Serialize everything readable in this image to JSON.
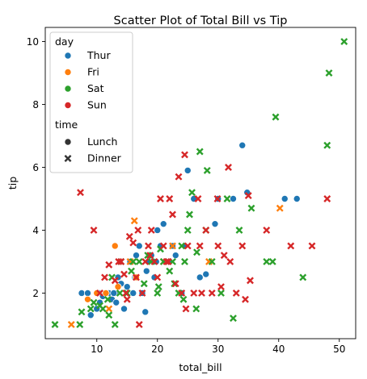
{
  "chart_data": {
    "type": "scatter",
    "title": "Scatter Plot of Total Bill vs Tip",
    "xlabel": "total_bill",
    "ylabel": "tip",
    "xlim": [
      1.5,
      52.7
    ],
    "ylim": [
      0.55,
      10.45
    ],
    "xticks": [
      10,
      20,
      30,
      40,
      50
    ],
    "yticks": [
      2,
      4,
      6,
      8,
      10
    ],
    "grid": false,
    "legend": {
      "placement": "top-left",
      "hue_title": "day",
      "hue_entries": [
        {
          "name": "Thur",
          "color": "#1f77b4"
        },
        {
          "name": "Fri",
          "color": "#ff7f0e"
        },
        {
          "name": "Sat",
          "color": "#2ca02c"
        },
        {
          "name": "Sun",
          "color": "#d62728"
        }
      ],
      "style_title": "time",
      "style_entries": [
        {
          "name": "Lunch",
          "marker": "circle"
        },
        {
          "name": "Dinner",
          "marker": "x"
        }
      ]
    },
    "points": [
      [
        10.3,
        2.0,
        "Thur",
        "Lunch"
      ],
      [
        10.0,
        1.5,
        "Thur",
        "Lunch"
      ],
      [
        10.5,
        1.7,
        "Thur",
        "Lunch"
      ],
      [
        11.0,
        1.9,
        "Thur",
        "Lunch"
      ],
      [
        12.0,
        2.0,
        "Thur",
        "Lunch"
      ],
      [
        12.5,
        1.8,
        "Thur",
        "Lunch"
      ],
      [
        13.0,
        2.0,
        "Thur",
        "Lunch"
      ],
      [
        13.5,
        2.5,
        "Thur",
        "Lunch"
      ],
      [
        14.0,
        2.3,
        "Thur",
        "Lunch"
      ],
      [
        15.0,
        2.2,
        "Thur",
        "Lunch"
      ],
      [
        15.5,
        3.0,
        "Thur",
        "Lunch"
      ],
      [
        16.0,
        2.0,
        "Thur",
        "Lunch"
      ],
      [
        16.5,
        3.2,
        "Thur",
        "Lunch"
      ],
      [
        17.0,
        3.5,
        "Thur",
        "Lunch"
      ],
      [
        17.5,
        2.0,
        "Thur",
        "Lunch"
      ],
      [
        18.0,
        1.4,
        "Thur",
        "Lunch"
      ],
      [
        18.5,
        3.0,
        "Thur",
        "Lunch"
      ],
      [
        19.0,
        3.2,
        "Thur",
        "Lunch"
      ],
      [
        19.5,
        2.5,
        "Thur",
        "Lunch"
      ],
      [
        20.0,
        4.0,
        "Thur",
        "Lunch"
      ],
      [
        20.5,
        3.5,
        "Thur",
        "Lunch"
      ],
      [
        21.0,
        4.2,
        "Thur",
        "Lunch"
      ],
      [
        22.0,
        3.0,
        "Thur",
        "Lunch"
      ],
      [
        22.5,
        3.5,
        "Thur",
        "Lunch"
      ],
      [
        23.0,
        3.2,
        "Thur",
        "Lunch"
      ],
      [
        24.0,
        2.0,
        "Thur",
        "Lunch"
      ],
      [
        24.5,
        3.5,
        "Thur",
        "Lunch"
      ],
      [
        25.0,
        5.9,
        "Thur",
        "Lunch"
      ],
      [
        26.0,
        5.0,
        "Thur",
        "Lunch"
      ],
      [
        27.0,
        2.5,
        "Thur",
        "Lunch"
      ],
      [
        28.0,
        2.6,
        "Thur",
        "Lunch"
      ],
      [
        29.5,
        4.2,
        "Thur",
        "Lunch"
      ],
      [
        30.0,
        5.0,
        "Thur",
        "Lunch"
      ],
      [
        32.5,
        5.0,
        "Thur",
        "Lunch"
      ],
      [
        34.0,
        6.7,
        "Thur",
        "Lunch"
      ],
      [
        34.8,
        5.2,
        "Thur",
        "Lunch"
      ],
      [
        41.0,
        5.0,
        "Thur",
        "Lunch"
      ],
      [
        43.0,
        5.0,
        "Thur",
        "Lunch"
      ],
      [
        7.5,
        2.0,
        "Thur",
        "Lunch"
      ],
      [
        8.5,
        2.0,
        "Thur",
        "Lunch"
      ],
      [
        9.0,
        1.3,
        "Thur",
        "Lunch"
      ],
      [
        11.5,
        2.0,
        "Thur",
        "Lunch"
      ],
      [
        12.8,
        2.0,
        "Thur",
        "Lunch"
      ],
      [
        13.2,
        1.7,
        "Thur",
        "Lunch"
      ],
      [
        14.5,
        1.5,
        "Thur",
        "Lunch"
      ],
      [
        16.3,
        2.5,
        "Thur",
        "Lunch"
      ],
      [
        18.2,
        2.7,
        "Thur",
        "Lunch"
      ],
      [
        19.8,
        3.0,
        "Thur",
        "Lunch"
      ],
      [
        5.8,
        1.0,
        "Fri",
        "Dinner"
      ],
      [
        8.5,
        1.8,
        "Fri",
        "Lunch"
      ],
      [
        10.0,
        2.0,
        "Fri",
        "Lunch"
      ],
      [
        11.5,
        2.0,
        "Fri",
        "Lunch"
      ],
      [
        13.0,
        3.5,
        "Fri",
        "Lunch"
      ],
      [
        13.5,
        2.2,
        "Fri",
        "Lunch"
      ],
      [
        15.5,
        3.0,
        "Fri",
        "Dinner"
      ],
      [
        16.2,
        4.3,
        "Fri",
        "Dinner"
      ],
      [
        16.5,
        2.5,
        "Fri",
        "Lunch"
      ],
      [
        22.5,
        3.5,
        "Fri",
        "Dinner"
      ],
      [
        28.5,
        3.0,
        "Fri",
        "Dinner"
      ],
      [
        40.2,
        4.7,
        "Fri",
        "Dinner"
      ],
      [
        12.0,
        1.5,
        "Fri",
        "Dinner"
      ],
      [
        21.0,
        3.0,
        "Fri",
        "Dinner"
      ],
      [
        3.1,
        1.0,
        "Sat",
        "Dinner"
      ],
      [
        7.2,
        1.0,
        "Sat",
        "Dinner"
      ],
      [
        7.5,
        1.4,
        "Sat",
        "Dinner"
      ],
      [
        9.0,
        1.5,
        "Sat",
        "Dinner"
      ],
      [
        10.5,
        1.6,
        "Sat",
        "Dinner"
      ],
      [
        11.0,
        1.5,
        "Sat",
        "Dinner"
      ],
      [
        12.0,
        1.3,
        "Sat",
        "Dinner"
      ],
      [
        12.5,
        2.5,
        "Sat",
        "Dinner"
      ],
      [
        13.0,
        1.0,
        "Sat",
        "Dinner"
      ],
      [
        14.0,
        3.0,
        "Sat",
        "Dinner"
      ],
      [
        15.0,
        2.0,
        "Sat",
        "Dinner"
      ],
      [
        16.0,
        3.0,
        "Sat",
        "Dinner"
      ],
      [
        17.0,
        3.0,
        "Sat",
        "Dinner"
      ],
      [
        17.8,
        2.3,
        "Sat",
        "Dinner"
      ],
      [
        18.4,
        3.2,
        "Sat",
        "Dinner"
      ],
      [
        19.0,
        3.0,
        "Sat",
        "Dinner"
      ],
      [
        20.0,
        2.0,
        "Sat",
        "Dinner"
      ],
      [
        20.5,
        3.4,
        "Sat",
        "Dinner"
      ],
      [
        21.0,
        3.0,
        "Sat",
        "Dinner"
      ],
      [
        22.0,
        2.7,
        "Sat",
        "Dinner"
      ],
      [
        22.5,
        3.0,
        "Sat",
        "Dinner"
      ],
      [
        23.5,
        2.0,
        "Sat",
        "Dinner"
      ],
      [
        24.0,
        3.5,
        "Sat",
        "Dinner"
      ],
      [
        24.5,
        3.0,
        "Sat",
        "Dinner"
      ],
      [
        25.0,
        4.0,
        "Sat",
        "Dinner"
      ],
      [
        25.3,
        4.5,
        "Sat",
        "Dinner"
      ],
      [
        25.7,
        5.2,
        "Sat",
        "Dinner"
      ],
      [
        26.5,
        3.3,
        "Sat",
        "Dinner"
      ],
      [
        27.0,
        6.5,
        "Sat",
        "Dinner"
      ],
      [
        28.0,
        4.0,
        "Sat",
        "Dinner"
      ],
      [
        28.2,
        5.9,
        "Sat",
        "Dinner"
      ],
      [
        29.0,
        3.0,
        "Sat",
        "Dinner"
      ],
      [
        30.5,
        2.0,
        "Sat",
        "Dinner"
      ],
      [
        31.5,
        5.0,
        "Sat",
        "Dinner"
      ],
      [
        32.5,
        1.2,
        "Sat",
        "Dinner"
      ],
      [
        33.5,
        4.0,
        "Sat",
        "Dinner"
      ],
      [
        35.5,
        4.7,
        "Sat",
        "Dinner"
      ],
      [
        38.0,
        3.0,
        "Sat",
        "Dinner"
      ],
      [
        39.0,
        3.0,
        "Sat",
        "Dinner"
      ],
      [
        39.5,
        7.6,
        "Sat",
        "Dinner"
      ],
      [
        44.0,
        2.5,
        "Sat",
        "Dinner"
      ],
      [
        48.0,
        6.7,
        "Sat",
        "Dinner"
      ],
      [
        48.3,
        9.0,
        "Sat",
        "Dinner"
      ],
      [
        50.8,
        10.0,
        "Sat",
        "Dinner"
      ],
      [
        15.7,
        2.7,
        "Sat",
        "Dinner"
      ],
      [
        13.8,
        2.0,
        "Sat",
        "Dinner"
      ],
      [
        9.5,
        1.7,
        "Sat",
        "Dinner"
      ],
      [
        26.4,
        1.5,
        "Sat",
        "Dinner"
      ],
      [
        22.8,
        2.3,
        "Sat",
        "Dinner"
      ],
      [
        11.8,
        1.8,
        "Sat",
        "Dinner"
      ],
      [
        20.2,
        2.2,
        "Sat",
        "Dinner"
      ],
      [
        24.3,
        1.8,
        "Sat",
        "Dinner"
      ],
      [
        7.3,
        5.2,
        "Sun",
        "Dinner"
      ],
      [
        9.5,
        4.0,
        "Sun",
        "Dinner"
      ],
      [
        10.5,
        2.0,
        "Sun",
        "Dinner"
      ],
      [
        12.0,
        2.9,
        "Sun",
        "Dinner"
      ],
      [
        13.0,
        2.4,
        "Sun",
        "Dinner"
      ],
      [
        14.0,
        3.0,
        "Sun",
        "Dinner"
      ],
      [
        14.5,
        2.6,
        "Sun",
        "Dinner"
      ],
      [
        15.0,
        1.8,
        "Sun",
        "Dinner"
      ],
      [
        16.0,
        3.6,
        "Sun",
        "Dinner"
      ],
      [
        16.5,
        2.5,
        "Sun",
        "Dinner"
      ],
      [
        17.0,
        1.0,
        "Sun",
        "Dinner"
      ],
      [
        17.5,
        2.0,
        "Sun",
        "Dinner"
      ],
      [
        18.0,
        3.0,
        "Sun",
        "Dinner"
      ],
      [
        18.5,
        3.5,
        "Sun",
        "Dinner"
      ],
      [
        19.0,
        4.0,
        "Sun",
        "Dinner"
      ],
      [
        19.5,
        3.0,
        "Sun",
        "Dinner"
      ],
      [
        20.5,
        5.0,
        "Sun",
        "Dinner"
      ],
      [
        21.0,
        3.5,
        "Sun",
        "Dinner"
      ],
      [
        21.5,
        3.0,
        "Sun",
        "Dinner"
      ],
      [
        22.0,
        5.0,
        "Sun",
        "Dinner"
      ],
      [
        22.5,
        4.5,
        "Sun",
        "Dinner"
      ],
      [
        23.5,
        5.7,
        "Sun",
        "Dinner"
      ],
      [
        24.0,
        2.0,
        "Sun",
        "Dinner"
      ],
      [
        25.0,
        3.5,
        "Sun",
        "Dinner"
      ],
      [
        26.0,
        2.0,
        "Sun",
        "Dinner"
      ],
      [
        27.0,
        3.5,
        "Sun",
        "Dinner"
      ],
      [
        28.0,
        4.0,
        "Sun",
        "Dinner"
      ],
      [
        29.0,
        2.0,
        "Sun",
        "Dinner"
      ],
      [
        30.0,
        3.5,
        "Sun",
        "Dinner"
      ],
      [
        31.0,
        3.2,
        "Sun",
        "Dinner"
      ],
      [
        32.0,
        3.0,
        "Sun",
        "Dinner"
      ],
      [
        33.0,
        2.0,
        "Sun",
        "Dinner"
      ],
      [
        34.0,
        3.5,
        "Sun",
        "Dinner"
      ],
      [
        34.5,
        1.8,
        "Sun",
        "Dinner"
      ],
      [
        35.0,
        5.1,
        "Sun",
        "Dinner"
      ],
      [
        38.0,
        4.0,
        "Sun",
        "Dinner"
      ],
      [
        42.0,
        3.5,
        "Sun",
        "Dinner"
      ],
      [
        45.5,
        3.5,
        "Sun",
        "Dinner"
      ],
      [
        48.0,
        5.0,
        "Sun",
        "Dinner"
      ],
      [
        20.0,
        2.5,
        "Sun",
        "Dinner"
      ],
      [
        23.0,
        2.3,
        "Sun",
        "Dinner"
      ],
      [
        26.7,
        5.0,
        "Sun",
        "Dinner"
      ],
      [
        31.7,
        6.0,
        "Sun",
        "Dinner"
      ],
      [
        29.9,
        5.0,
        "Sun",
        "Dinner"
      ],
      [
        18.8,
        3.2,
        "Sun",
        "Dinner"
      ],
      [
        16.8,
        4.0,
        "Sun",
        "Dinner"
      ],
      [
        13.6,
        3.0,
        "Sun",
        "Dinner"
      ],
      [
        11.3,
        2.5,
        "Sun",
        "Dinner"
      ],
      [
        24.7,
        1.5,
        "Sun",
        "Dinner"
      ],
      [
        15.4,
        3.8,
        "Sun",
        "Dinner"
      ],
      [
        21.8,
        3.0,
        "Sun",
        "Dinner"
      ],
      [
        27.3,
        2.0,
        "Sun",
        "Dinner"
      ],
      [
        24.5,
        6.4,
        "Sun",
        "Dinner"
      ],
      [
        30.5,
        2.2,
        "Sun",
        "Dinner"
      ],
      [
        35.3,
        2.4,
        "Sun",
        "Dinner"
      ],
      [
        14.8,
        2.0,
        "Sun",
        "Dinner"
      ]
    ]
  }
}
